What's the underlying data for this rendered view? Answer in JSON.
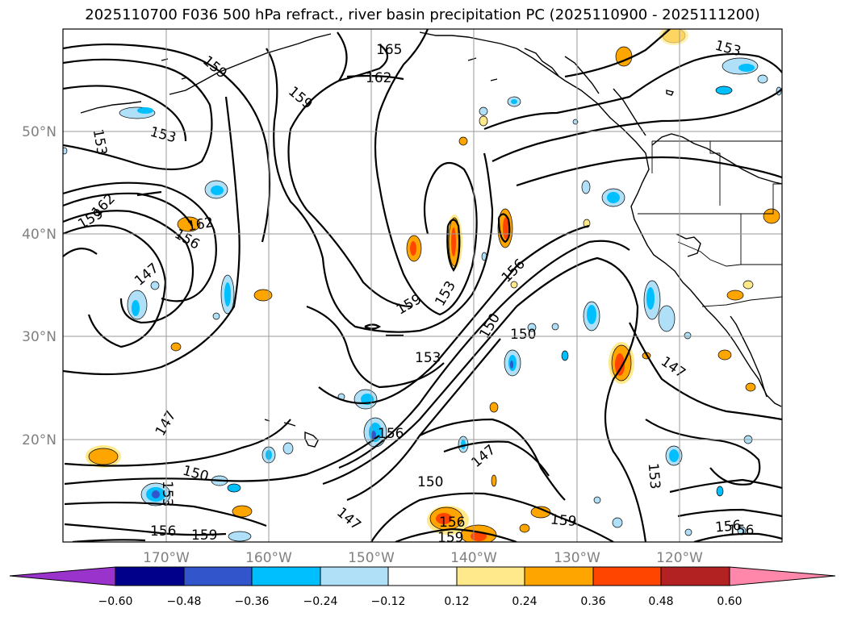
{
  "title": "2025110700 F036 500 hPa refract., river basin precipitation PC (2025110900 - 2025111200)",
  "lat_labels": [
    "50°N",
    "40°N",
    "30°N",
    "20°N"
  ],
  "lon_labels": [
    "170°W",
    "160°W",
    "150°W",
    "140°W",
    "130°W",
    "120°W"
  ],
  "contour_labels": [
    "165",
    "162",
    "159",
    "159",
    "153",
    "153",
    "162",
    "159",
    "162",
    "156",
    "147",
    "159",
    "153",
    "150",
    "150",
    "156",
    "153",
    "147",
    "156",
    "147",
    "150",
    "153",
    "150",
    "156",
    "159",
    "147",
    "156",
    "159",
    "159",
    "153",
    "153",
    "156"
  ],
  "colorbar": {
    "ticks": [
      "−0.60",
      "−0.48",
      "−0.36",
      "−0.24",
      "−0.12",
      "0.12",
      "0.24",
      "0.36",
      "0.48",
      "0.60"
    ],
    "colors": [
      "#9933cc",
      "#00008b",
      "#3355cc",
      "#00bfff",
      "#b0e0f8",
      "#ffffff",
      "#ffe98a",
      "#ffa500",
      "#ff4500",
      "#b22222",
      "#ff88aa"
    ]
  }
}
